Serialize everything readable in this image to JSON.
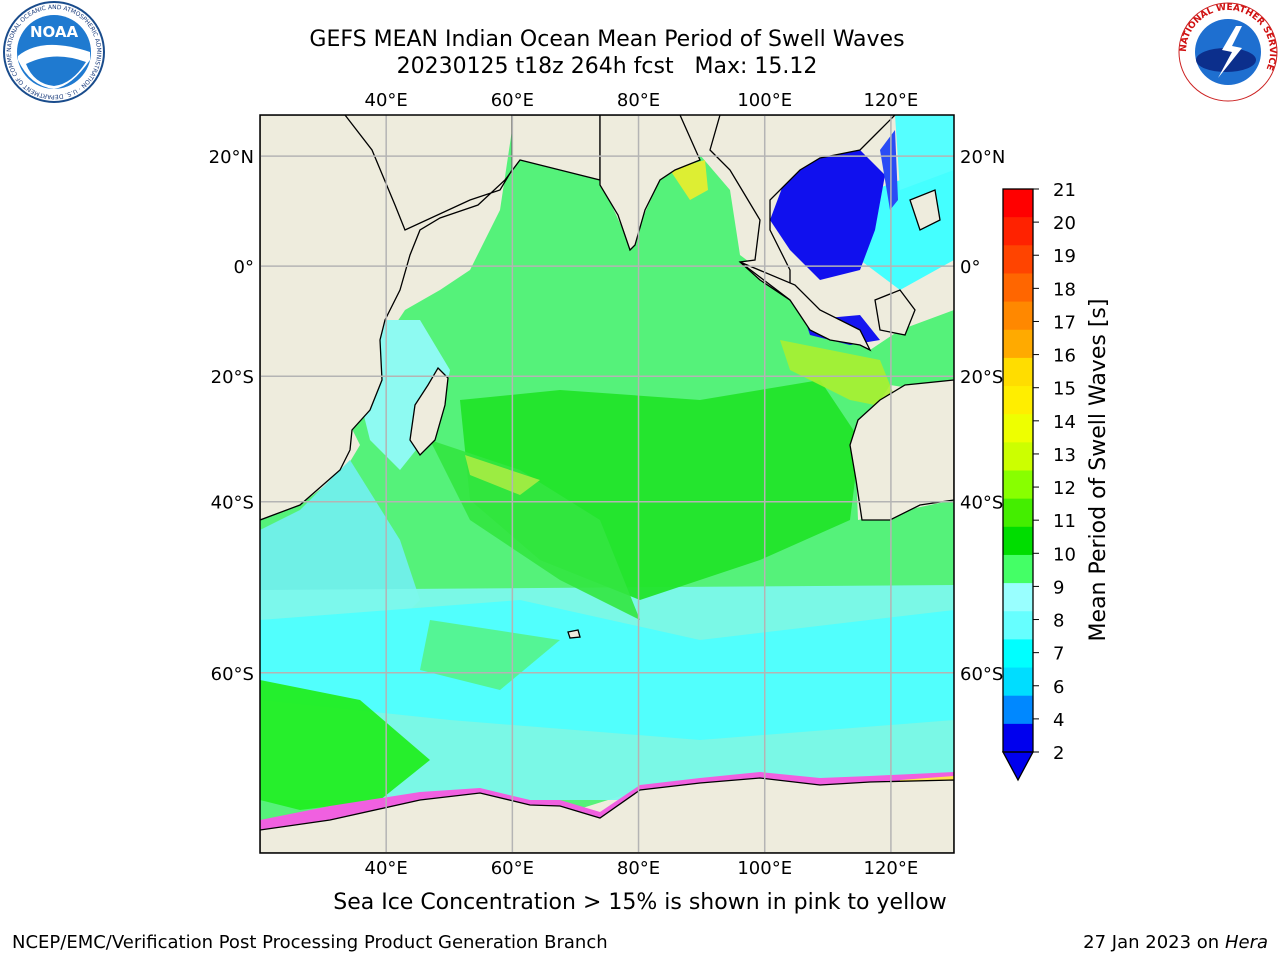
{
  "header": {
    "title_line1": "GEFS MEAN Indian Ocean Mean Period of Swell Waves",
    "title_line2": "20230125 t18z 264h fcst   Max: 15.12"
  },
  "logos": {
    "left_main": "NOAA",
    "left_ring": "NATIONAL OCEANIC AND ATMOSPHERIC ADMINISTRATION · U.S. DEPARTMENT OF COMMERCE",
    "right_ring": "NATIONAL WEATHER SERVICE"
  },
  "map": {
    "region": "Indian Ocean",
    "lon_range": [
      20,
      130
    ],
    "lat_range": [
      -73,
      27
    ],
    "lon_ticks": [
      "40°E",
      "60°E",
      "80°E",
      "100°E",
      "120°E"
    ],
    "lat_ticks": [
      "20°N",
      "0°",
      "20°S",
      "40°S",
      "60°S"
    ],
    "grid": true,
    "land_color": "#eeecdd",
    "grid_color": "#b4b4b4"
  },
  "colorbar": {
    "label": "Mean Period of Swell Waves [s]",
    "ticks": [
      "21",
      "20",
      "19",
      "18",
      "17",
      "16",
      "15",
      "14",
      "13",
      "12",
      "11",
      "10",
      "9",
      "8",
      "7",
      "6",
      "4",
      "2"
    ],
    "colors": [
      "#ff0000",
      "#ff2200",
      "#ff4400",
      "#ff6600",
      "#ff8800",
      "#ffaa00",
      "#ffdd00",
      "#ffee00",
      "#eeff00",
      "#ccff00",
      "#88ff00",
      "#44ee00",
      "#00dd00",
      "#44ff66",
      "#99ffff",
      "#66ffff",
      "#00ffff",
      "#00ddff",
      "#0088ff",
      "#0000ee"
    ],
    "extend": "min"
  },
  "footer": {
    "note": "Sea Ice Concentration > 15% is shown in pink to yellow",
    "left": "NCEP/EMC/Verification Post Processing Product Generation Branch",
    "right_date": "27 Jan 2023 on ",
    "right_machine": "Hera"
  }
}
